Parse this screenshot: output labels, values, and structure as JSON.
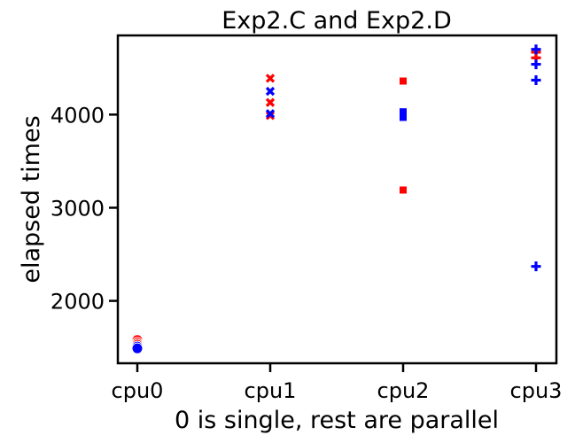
{
  "chart_data": {
    "type": "scatter",
    "title": "Exp2.C and Exp2.D",
    "xlabel": "0 is single, rest are parallel",
    "ylabel": "elapsed times",
    "categories": [
      "cpu0",
      "cpu1",
      "cpu2",
      "cpu3"
    ],
    "ylim": [
      1330,
      4850
    ],
    "y_ticks": [
      2000,
      3000,
      4000
    ],
    "grid": false,
    "legend": "none",
    "series": [
      {
        "color": "#ff0000",
        "points": [
          {
            "x": "cpu0",
            "y": 1580,
            "marker": "circle"
          },
          {
            "x": "cpu0",
            "y": 1550,
            "marker": "circle"
          },
          {
            "x": "cpu0",
            "y": 1530,
            "marker": "circle"
          },
          {
            "x": "cpu1",
            "y": 4390,
            "marker": "x"
          },
          {
            "x": "cpu1",
            "y": 4130,
            "marker": "x"
          },
          {
            "x": "cpu1",
            "y": 3990,
            "marker": "x"
          },
          {
            "x": "cpu2",
            "y": 4360,
            "marker": "square"
          },
          {
            "x": "cpu2",
            "y": 3190,
            "marker": "square"
          },
          {
            "x": "cpu3",
            "y": 4670,
            "marker": "plus"
          },
          {
            "x": "cpu3",
            "y": 4610,
            "marker": "plus"
          }
        ]
      },
      {
        "color": "#0000ff",
        "points": [
          {
            "x": "cpu0",
            "y": 1510,
            "marker": "circle"
          },
          {
            "x": "cpu0",
            "y": 1490,
            "marker": "circle"
          },
          {
            "x": "cpu1",
            "y": 4250,
            "marker": "x"
          },
          {
            "x": "cpu1",
            "y": 4010,
            "marker": "x"
          },
          {
            "x": "cpu2",
            "y": 4030,
            "marker": "square"
          },
          {
            "x": "cpu2",
            "y": 3970,
            "marker": "square"
          },
          {
            "x": "cpu3",
            "y": 4700,
            "marker": "plus"
          },
          {
            "x": "cpu3",
            "y": 4540,
            "marker": "plus"
          },
          {
            "x": "cpu3",
            "y": 4370,
            "marker": "plus"
          },
          {
            "x": "cpu3",
            "y": 2370,
            "marker": "plus"
          }
        ]
      }
    ]
  }
}
